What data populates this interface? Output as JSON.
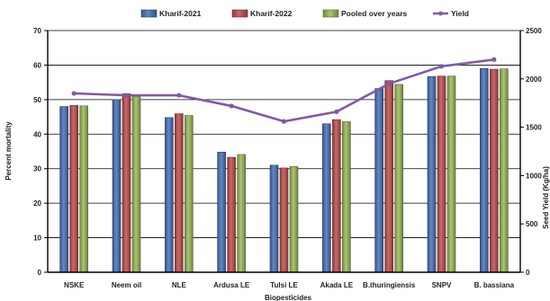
{
  "chart_data": {
    "type": "bar",
    "xlabel": "Biopesticides",
    "ylabel": "Percent mortality",
    "y2label": "Seed Yield (Kg/ha)",
    "ylim": [
      0,
      70
    ],
    "y2lim": [
      0,
      2500
    ],
    "yticks": [
      0,
      10,
      20,
      30,
      40,
      50,
      60,
      70
    ],
    "y2ticks": [
      0,
      500,
      1000,
      1500,
      2000,
      2500
    ],
    "grid": true,
    "legend_position": "top",
    "categories": [
      "NSKE",
      "Neem oil",
      "NLE",
      "Ardusa LE",
      "Tulsi LE",
      "Akada LE",
      "B.thuringiensis",
      "SNPV",
      "B. bassiana"
    ],
    "series": [
      {
        "name": "Kharif-2021",
        "kind": "bar",
        "color": "#4a73b8",
        "values": [
          48.0,
          50.0,
          44.8,
          34.8,
          31.0,
          43.0,
          53.2,
          56.7,
          59.0
        ]
      },
      {
        "name": "Kharif-2022",
        "kind": "bar",
        "color": "#c0504d",
        "values": [
          48.3,
          51.7,
          45.9,
          33.3,
          30.2,
          44.2,
          55.5,
          56.8,
          58.8
        ]
      },
      {
        "name": "Pooled over years",
        "kind": "bar",
        "color": "#9bbb59",
        "values": [
          48.2,
          50.9,
          45.4,
          34.1,
          30.6,
          43.6,
          54.4,
          56.8,
          58.9
        ]
      },
      {
        "name": "Yield",
        "kind": "line",
        "axis": "right",
        "color": "#7f5aa6",
        "values": [
          1850,
          1830,
          1830,
          1720,
          1560,
          1660,
          1950,
          2130,
          2200
        ]
      }
    ]
  }
}
